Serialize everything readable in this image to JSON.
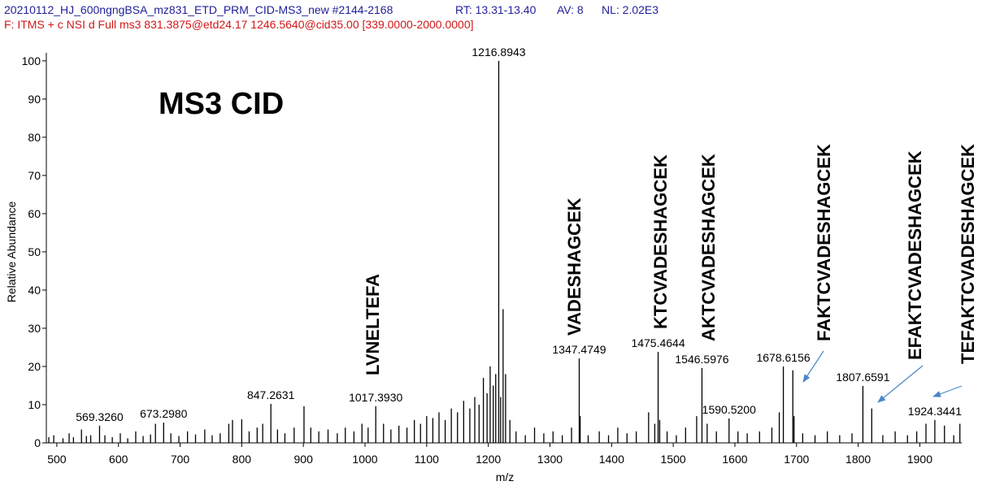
{
  "chart_data": {
    "type": "stick",
    "header": [
      "20210112_HJ_600ngngBSA_mz831_ETD_PRM_CID-MS3_new #2144-2168",
      "RT: 13.31-13.40",
      "AV: 8",
      "NL: 2.02E3"
    ],
    "filter": "F: ITMS + c NSI d Full ms3 831.3875@etd24.17 1246.5640@cid35.00 [339.0000-2000.0000]",
    "title": "MS3 CID",
    "x_label": "m/z",
    "y_label": "Relative Abundance",
    "xlim": [
      483,
      1968
    ],
    "ylim": [
      0,
      102.1
    ],
    "xticks": [
      500,
      600,
      700,
      800,
      900,
      1000,
      1100,
      1200,
      1300,
      1400,
      1500,
      1600,
      1700,
      1800,
      1900
    ],
    "yticks": [
      0,
      10,
      20,
      30,
      40,
      50,
      60,
      70,
      80,
      90,
      100
    ],
    "color": "#000000",
    "x": [
      487,
      495,
      510,
      520,
      527,
      540,
      548,
      555,
      569.326,
      578,
      590,
      603,
      615,
      628,
      640,
      652,
      660,
      673.298,
      685,
      698,
      712,
      725,
      740,
      752,
      765,
      779,
      785,
      800,
      812,
      825,
      834,
      847.2631,
      858,
      870,
      885,
      901,
      912,
      925,
      940,
      955,
      968,
      982,
      995,
      1005,
      1017.393,
      1030,
      1042,
      1055,
      1068,
      1080,
      1090,
      1100,
      1110,
      1120,
      1130,
      1140,
      1150,
      1160,
      1170,
      1178,
      1185,
      1192,
      1198,
      1203,
      1208,
      1212,
      1216.8943,
      1220,
      1224,
      1228,
      1235,
      1245,
      1260,
      1275,
      1290,
      1305,
      1320,
      1335,
      1347.4749,
      1349,
      1362,
      1380,
      1395,
      1410,
      1425,
      1440,
      1460,
      1470,
      1475.4644,
      1478,
      1490,
      1505,
      1520,
      1538,
      1546.5976,
      1555,
      1570,
      1590.52,
      1605,
      1620,
      1640,
      1660,
      1672,
      1678.6156,
      1694,
      1696,
      1710,
      1730,
      1750,
      1770,
      1790,
      1807.6591,
      1822,
      1840,
      1860,
      1880,
      1895,
      1910,
      1924.3441,
      1940,
      1955,
      1965
    ],
    "values": [
      1.5,
      2,
      1.2,
      2.5,
      1.5,
      3.5,
      1.8,
      2,
      4.5,
      2,
      1.5,
      2.5,
      1.2,
      3,
      1.8,
      2.2,
      5,
      5.3,
      2.5,
      1.8,
      3,
      2.2,
      3.5,
      2,
      2.5,
      5,
      6,
      6.2,
      3,
      4,
      5,
      10.2,
      3.5,
      2.5,
      4,
      9.6,
      4,
      3,
      3.5,
      2.5,
      4,
      3,
      5,
      4,
      9.6,
      5,
      3.5,
      4.5,
      4,
      6,
      5,
      7,
      6.5,
      8,
      6,
      9,
      8,
      11,
      9,
      12,
      10,
      17,
      13,
      20,
      15,
      18,
      100,
      12,
      35,
      18,
      6,
      3,
      2,
      4,
      2.5,
      3,
      2,
      4,
      22.1,
      7,
      2,
      3,
      2,
      4,
      2.5,
      3,
      8,
      5,
      23.8,
      6,
      3,
      2,
      4,
      7,
      19.6,
      5,
      3,
      6.4,
      3,
      2.5,
      3,
      4,
      8,
      20,
      19,
      7,
      2.5,
      2,
      3,
      2,
      2.5,
      14.9,
      9,
      2,
      3,
      2,
      3,
      5,
      6,
      4.5,
      2,
      5
    ],
    "x_labels": [
      null,
      null,
      null,
      null,
      null,
      null,
      null,
      null,
      "569.3260",
      null,
      null,
      null,
      null,
      null,
      null,
      null,
      null,
      "673.2980",
      null,
      null,
      null,
      null,
      null,
      null,
      null,
      null,
      null,
      null,
      null,
      null,
      null,
      "847.2631",
      null,
      null,
      null,
      null,
      null,
      null,
      null,
      null,
      null,
      null,
      null,
      null,
      "1017.3930",
      null,
      null,
      null,
      null,
      null,
      null,
      null,
      null,
      null,
      null,
      null,
      null,
      null,
      null,
      null,
      null,
      null,
      null,
      null,
      null,
      null,
      "1216.8943",
      null,
      null,
      null,
      null,
      null,
      null,
      null,
      null,
      null,
      null,
      null,
      "1347.4749",
      null,
      null,
      null,
      null,
      null,
      null,
      null,
      null,
      null,
      "1475.4644",
      null,
      null,
      null,
      null,
      null,
      "1546.5976",
      null,
      null,
      "1590.5200",
      null,
      null,
      null,
      null,
      null,
      "1678.6156",
      null,
      null,
      null,
      null,
      null,
      null,
      null,
      "1807.6591",
      null,
      null,
      null,
      null,
      null,
      null,
      "1924.3441",
      null,
      null,
      null
    ],
    "annotations": [
      "LVNELTEFA",
      "VADESHAGCEK",
      "KTCVADESHAGCEK",
      "AKTCVADESHAGCEK",
      "FAKTCVADESHAGCEK",
      "EFAKTCVADESHAGCEK",
      "TEFAKTCVADESHAGCEK"
    ]
  }
}
